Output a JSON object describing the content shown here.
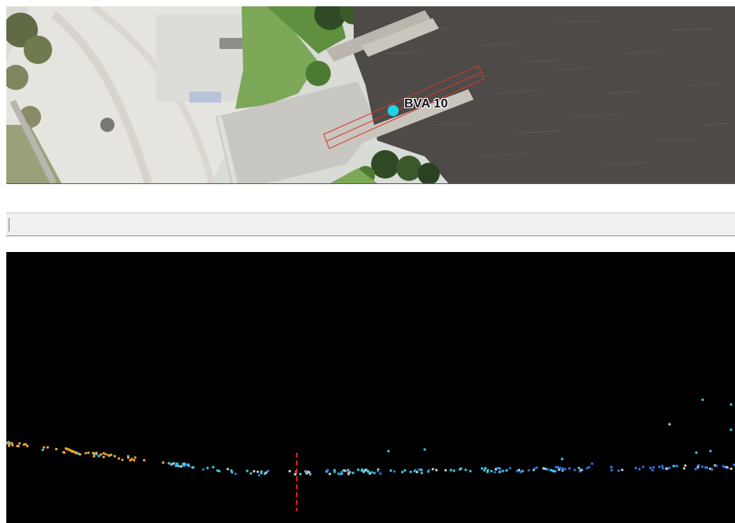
{
  "map": {
    "point_label": "BVA 10",
    "colors": {
      "water": "#4d4a48",
      "point_marker": "#1ed3e8",
      "section_box": "#d23a2a"
    }
  },
  "toolbar": {
    "input_value": "",
    "input_placeholder": ""
  },
  "profile": {
    "colors": {
      "background": "#000000",
      "ground_orange": "#e8a23a",
      "cyan": "#3ec8e0",
      "blue": "#2f73d8",
      "gray": "#c9c9c9",
      "marker_line": "#e21b1b"
    }
  }
}
